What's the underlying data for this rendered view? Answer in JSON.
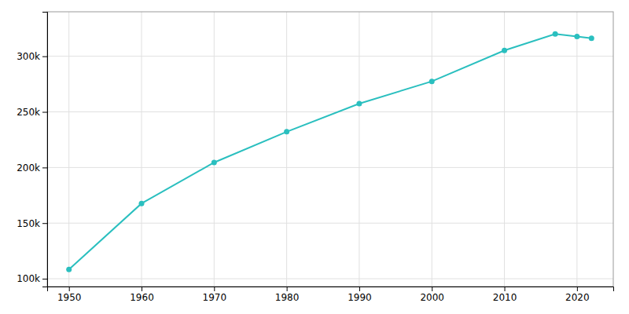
{
  "chart_data": {
    "type": "line",
    "x": [
      1950,
      1960,
      1970,
      1980,
      1990,
      2000,
      2010,
      2017,
      2020,
      2022
    ],
    "values": [
      108287,
      167690,
      204525,
      232134,
      257453,
      277454,
      305215,
      320069,
      317773,
      316239
    ],
    "color": "#2abfbf",
    "marker": "circle",
    "xlim": [
      1947,
      2025
    ],
    "ylim": [
      93000,
      340000
    ],
    "xticks": [
      1950,
      1960,
      1970,
      1980,
      1990,
      2000,
      2010,
      2020
    ],
    "yticks": [
      {
        "value": 100000,
        "label": "100k"
      },
      {
        "value": 150000,
        "label": "150k"
      },
      {
        "value": 200000,
        "label": "200k"
      },
      {
        "value": 250000,
        "label": "250k"
      },
      {
        "value": 300000,
        "label": "300k"
      }
    ],
    "grid": true
  }
}
